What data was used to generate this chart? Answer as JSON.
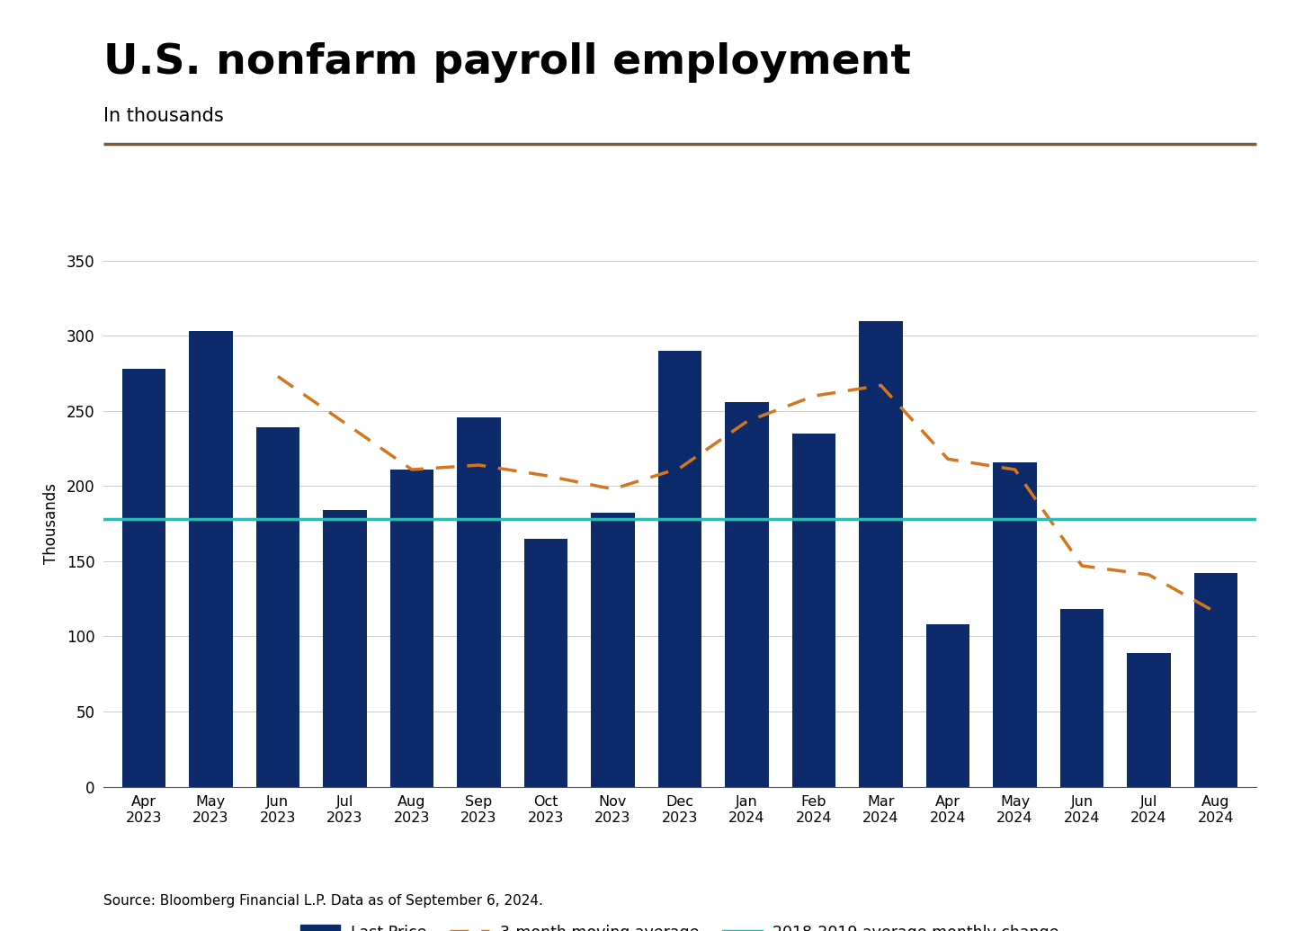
{
  "categories": [
    "Apr\n2023",
    "May\n2023",
    "Jun\n2023",
    "Jul\n2023",
    "Aug\n2023",
    "Sep\n2023",
    "Oct\n2023",
    "Nov\n2023",
    "Dec\n2023",
    "Jan\n2024",
    "Feb\n2024",
    "Mar\n2024",
    "Apr\n2024",
    "May\n2024",
    "Jun\n2024",
    "Jul\n2024",
    "Aug\n2024"
  ],
  "values": [
    278,
    303,
    239,
    184,
    211,
    246,
    165,
    182,
    290,
    256,
    235,
    310,
    108,
    216,
    118,
    89,
    142
  ],
  "moving_avg": [
    null,
    null,
    273,
    242,
    211,
    214,
    207,
    198,
    212,
    243,
    260,
    267,
    218,
    211,
    147,
    141,
    116
  ],
  "reference_line": 178,
  "bar_color": "#0d2b6b",
  "moving_avg_color": "#d4761e",
  "reference_color": "#2abcb4",
  "title": "U.S. nonfarm payroll employment",
  "subtitle": "In thousands",
  "ylabel": "Thousands",
  "ylim": [
    0,
    350
  ],
  "yticks": [
    0,
    50,
    100,
    150,
    200,
    250,
    300,
    350
  ],
  "source_text": "Source: Bloomberg Financial L.P. Data as of September 6, 2024.",
  "title_fontsize": 34,
  "subtitle_fontsize": 15,
  "divider_color": "#7a5c3a",
  "background_color": "#ffffff"
}
